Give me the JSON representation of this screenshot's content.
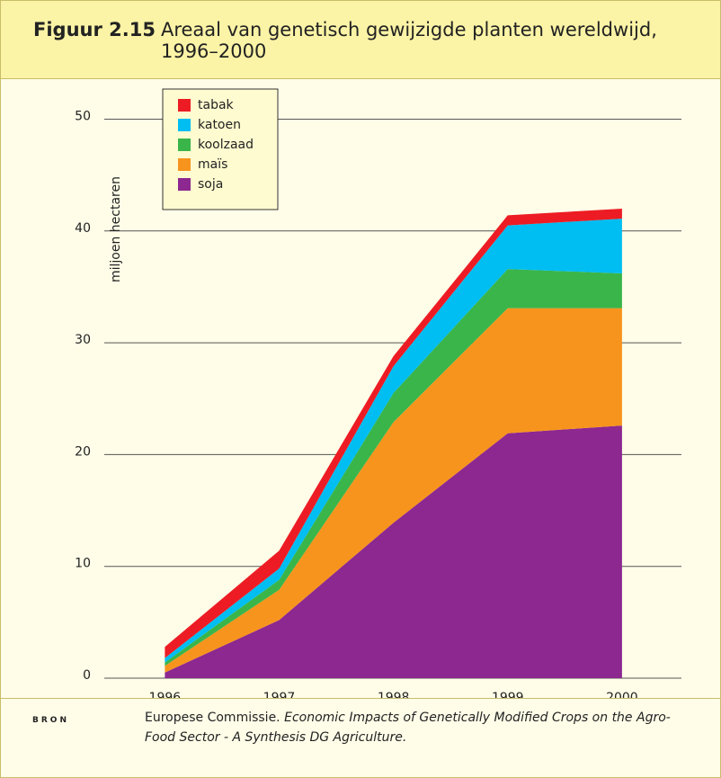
{
  "chart_data": {
    "type": "stacked_area",
    "title_label": "Figuur 2.15",
    "title": "Areaal van genetisch gewijzigde planten wereldwijd, 1996–2000",
    "ylabel": "miljoen hectaren",
    "x": [
      1996,
      1997,
      1998,
      1999,
      2000
    ],
    "xlim": [
      1995.47,
      2000.52
    ],
    "xticks": [
      1996,
      1997,
      1998,
      1999,
      2000
    ],
    "ylim": [
      0,
      53.5
    ],
    "yticks": [
      0,
      10,
      20,
      30,
      40,
      50
    ],
    "grid": true,
    "legend": "upper left",
    "series": [
      {
        "name": "soja",
        "color": "#8c2890",
        "values": [
          0.5,
          5.2,
          13.9,
          21.9,
          22.6
        ]
      },
      {
        "name": "maïs",
        "color": "#f7941d",
        "values": [
          0.6,
          2.7,
          9.0,
          11.2,
          10.5
        ]
      },
      {
        "name": "koolzaad",
        "color": "#39b54a",
        "values": [
          0.3,
          0.9,
          2.6,
          3.5,
          3.1
        ]
      },
      {
        "name": "katoen",
        "color": "#00bdf2",
        "values": [
          0.4,
          1.0,
          2.4,
          3.9,
          4.9
        ]
      },
      {
        "name": "tabak",
        "color": "#ed1c24",
        "values": [
          1.0,
          1.6,
          0.9,
          0.9,
          0.9
        ]
      }
    ]
  },
  "source": {
    "label": "BRON",
    "text": "Europese Commissie.",
    "title": "Economic Impacts of Genetically Modified Crops on the Agro-Food Sector - A Synthesis DG Agriculture."
  }
}
